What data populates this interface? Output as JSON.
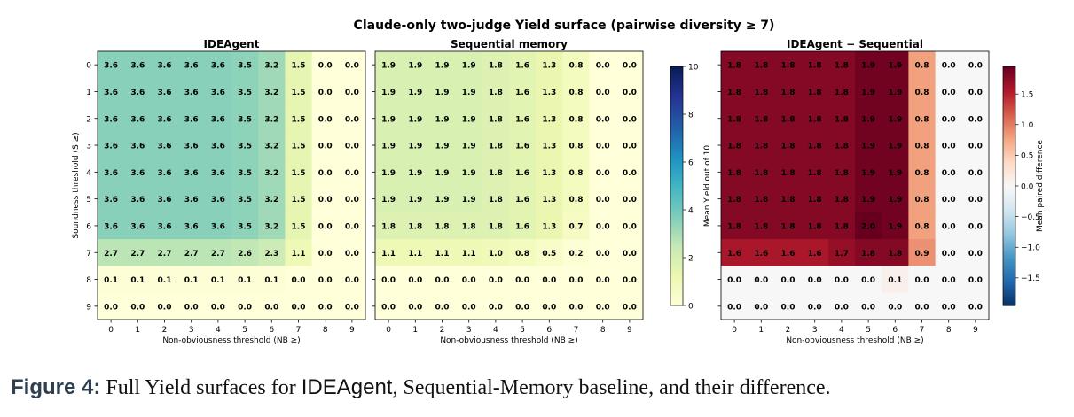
{
  "chart_data": {
    "suptitle": "Claude-only two-judge Yield surface (pairwise diversity ≥ 7)",
    "xlabel": "Non-obviousness threshold (NB ≥)",
    "ylabel": "Soundness threshold (S ≥)",
    "x_ticks": [
      "0",
      "1",
      "2",
      "3",
      "4",
      "5",
      "6",
      "7",
      "8",
      "9"
    ],
    "y_ticks": [
      "0",
      "1",
      "2",
      "3",
      "4",
      "5",
      "6",
      "7",
      "8",
      "9"
    ],
    "panels": [
      {
        "type": "heatmap",
        "title": "IDEAgent",
        "colormap": "YlGnBu",
        "vmin": 0,
        "vmax": 10,
        "values": [
          [
            "3.6",
            "3.6",
            "3.6",
            "3.6",
            "3.6",
            "3.5",
            "3.2",
            "1.5",
            "0.0",
            "0.0"
          ],
          [
            "3.6",
            "3.6",
            "3.6",
            "3.6",
            "3.6",
            "3.5",
            "3.2",
            "1.5",
            "0.0",
            "0.0"
          ],
          [
            "3.6",
            "3.6",
            "3.6",
            "3.6",
            "3.6",
            "3.5",
            "3.2",
            "1.5",
            "0.0",
            "0.0"
          ],
          [
            "3.6",
            "3.6",
            "3.6",
            "3.6",
            "3.6",
            "3.5",
            "3.2",
            "1.5",
            "0.0",
            "0.0"
          ],
          [
            "3.6",
            "3.6",
            "3.6",
            "3.6",
            "3.6",
            "3.5",
            "3.2",
            "1.5",
            "0.0",
            "0.0"
          ],
          [
            "3.6",
            "3.6",
            "3.6",
            "3.6",
            "3.6",
            "3.5",
            "3.2",
            "1.5",
            "0.0",
            "0.0"
          ],
          [
            "3.6",
            "3.6",
            "3.6",
            "3.6",
            "3.6",
            "3.5",
            "3.2",
            "1.5",
            "0.0",
            "0.0"
          ],
          [
            "2.7",
            "2.7",
            "2.7",
            "2.7",
            "2.7",
            "2.6",
            "2.3",
            "1.1",
            "0.0",
            "0.0"
          ],
          [
            "0.1",
            "0.1",
            "0.1",
            "0.1",
            "0.1",
            "0.1",
            "0.1",
            "0.0",
            "0.0",
            "0.0"
          ],
          [
            "0.0",
            "0.0",
            "0.0",
            "0.0",
            "0.0",
            "0.0",
            "0.0",
            "0.0",
            "0.0",
            "0.0"
          ]
        ]
      },
      {
        "type": "heatmap",
        "title": "Sequential memory",
        "colormap": "YlGnBu",
        "vmin": 0,
        "vmax": 10,
        "values": [
          [
            "1.9",
            "1.9",
            "1.9",
            "1.9",
            "1.8",
            "1.6",
            "1.3",
            "0.8",
            "0.0",
            "0.0"
          ],
          [
            "1.9",
            "1.9",
            "1.9",
            "1.9",
            "1.8",
            "1.6",
            "1.3",
            "0.8",
            "0.0",
            "0.0"
          ],
          [
            "1.9",
            "1.9",
            "1.9",
            "1.9",
            "1.8",
            "1.6",
            "1.3",
            "0.8",
            "0.0",
            "0.0"
          ],
          [
            "1.9",
            "1.9",
            "1.9",
            "1.9",
            "1.8",
            "1.6",
            "1.3",
            "0.8",
            "0.0",
            "0.0"
          ],
          [
            "1.9",
            "1.9",
            "1.9",
            "1.9",
            "1.8",
            "1.6",
            "1.3",
            "0.8",
            "0.0",
            "0.0"
          ],
          [
            "1.9",
            "1.9",
            "1.9",
            "1.9",
            "1.8",
            "1.6",
            "1.3",
            "0.8",
            "0.0",
            "0.0"
          ],
          [
            "1.8",
            "1.8",
            "1.8",
            "1.8",
            "1.8",
            "1.6",
            "1.3",
            "0.7",
            "0.0",
            "0.0"
          ],
          [
            "1.1",
            "1.1",
            "1.1",
            "1.1",
            "1.0",
            "0.8",
            "0.5",
            "0.2",
            "0.0",
            "0.0"
          ],
          [
            "0.0",
            "0.0",
            "0.0",
            "0.0",
            "0.0",
            "0.0",
            "0.0",
            "0.0",
            "0.0",
            "0.0"
          ],
          [
            "0.0",
            "0.0",
            "0.0",
            "0.0",
            "0.0",
            "0.0",
            "0.0",
            "0.0",
            "0.0",
            "0.0"
          ]
        ],
        "colorbar": {
          "label": "Mean Yield out of 10",
          "ticks": [
            "0",
            "2",
            "4",
            "6",
            "8",
            "10"
          ],
          "min": 0,
          "max": 10
        }
      },
      {
        "type": "heatmap",
        "title": "IDEAgent − Sequential",
        "colormap": "RdBu_r",
        "vmin": -1.95,
        "vmax": 1.95,
        "values": [
          [
            "1.8",
            "1.8",
            "1.8",
            "1.8",
            "1.8",
            "1.9",
            "1.9",
            "0.8",
            "0.0",
            "0.0"
          ],
          [
            "1.8",
            "1.8",
            "1.8",
            "1.8",
            "1.8",
            "1.9",
            "1.9",
            "0.8",
            "0.0",
            "0.0"
          ],
          [
            "1.8",
            "1.8",
            "1.8",
            "1.8",
            "1.8",
            "1.9",
            "1.9",
            "0.8",
            "0.0",
            "0.0"
          ],
          [
            "1.8",
            "1.8",
            "1.8",
            "1.8",
            "1.8",
            "1.9",
            "1.9",
            "0.8",
            "0.0",
            "0.0"
          ],
          [
            "1.8",
            "1.8",
            "1.8",
            "1.8",
            "1.8",
            "1.9",
            "1.9",
            "0.8",
            "0.0",
            "0.0"
          ],
          [
            "1.8",
            "1.8",
            "1.8",
            "1.8",
            "1.8",
            "1.9",
            "1.9",
            "0.8",
            "0.0",
            "0.0"
          ],
          [
            "1.8",
            "1.8",
            "1.8",
            "1.8",
            "1.8",
            "2.0",
            "1.9",
            "0.8",
            "0.0",
            "0.0"
          ],
          [
            "1.6",
            "1.6",
            "1.6",
            "1.6",
            "1.7",
            "1.8",
            "1.8",
            "0.9",
            "0.0",
            "0.0"
          ],
          [
            "0.0",
            "0.0",
            "0.0",
            "0.0",
            "0.0",
            "0.0",
            "0.1",
            "0.0",
            "0.0",
            "0.0"
          ],
          [
            "0.0",
            "0.0",
            "0.0",
            "0.0",
            "0.0",
            "0.0",
            "0.0",
            "0.0",
            "0.0",
            "0.0"
          ]
        ],
        "colorbar": {
          "label": "Mean paired difference",
          "ticks": [
            "1.5",
            "1.0",
            "0.5",
            "0.0",
            "−0.5",
            "−1.0",
            "−1.5"
          ],
          "tick_values": [
            1.5,
            1.0,
            0.5,
            0.0,
            -0.5,
            -1.0,
            -1.5
          ],
          "min": -1.95,
          "max": 1.95
        }
      }
    ]
  },
  "caption": {
    "label": "Figure 4:",
    "text_1": "Full Yield surfaces for",
    "system": "IDEAgent",
    "text_2": ", Sequential-Memory baseline, and their difference."
  }
}
